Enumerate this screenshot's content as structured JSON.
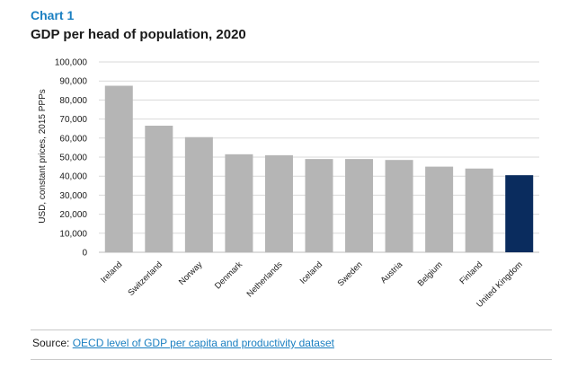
{
  "header": {
    "label": "Chart 1",
    "title": "GDP per head of population, 2020"
  },
  "source": {
    "prefix": "Source: ",
    "link_text": "OECD level of GDP per capita and productivity dataset"
  },
  "colors": {
    "accent": "#1a7fc1",
    "bar_default": "#b5b5b5",
    "bar_highlight": "#0a2c5e",
    "grid": "#d9d9d9"
  },
  "chart_data": {
    "type": "bar",
    "title": "GDP per head of population, 2020",
    "xlabel": "",
    "ylabel": "USD, constant prices, 2015 PPPs",
    "ylim": [
      0,
      100000
    ],
    "yticks": [
      0,
      10000,
      20000,
      30000,
      40000,
      50000,
      60000,
      70000,
      80000,
      90000,
      100000
    ],
    "ytick_labels": [
      "0",
      "10,000",
      "20,000",
      "30,000",
      "40,000",
      "50,000",
      "60,000",
      "70,000",
      "80,000",
      "90,000",
      "100,000"
    ],
    "grid": true,
    "categories": [
      "Ireland",
      "Switzerland",
      "Norway",
      "Denmark",
      "Netherlands",
      "Iceland",
      "Sweden",
      "Austria",
      "Belgium",
      "Finland",
      "United Kingdom"
    ],
    "values": [
      87500,
      66500,
      60500,
      51500,
      51000,
      49000,
      49000,
      48500,
      45000,
      44000,
      40500
    ],
    "highlight": "United Kingdom"
  }
}
